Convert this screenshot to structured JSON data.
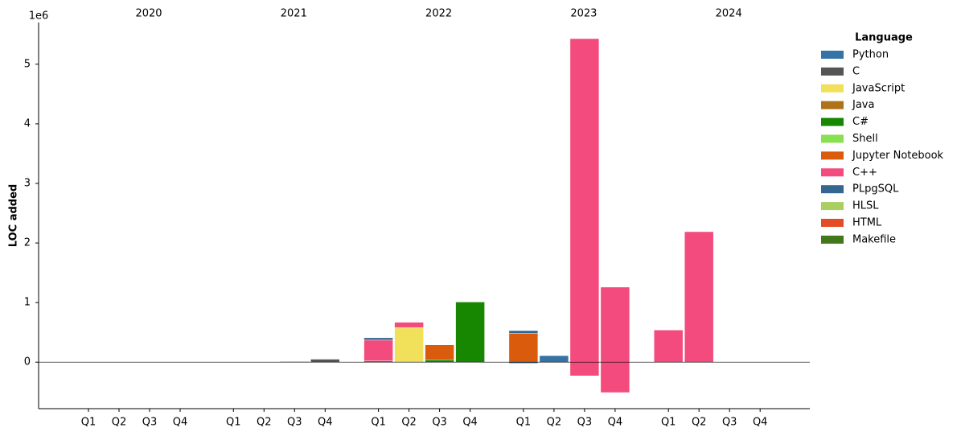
{
  "chart_data": {
    "type": "stacked_bar",
    "ylabel": "LOC added",
    "scale_label": "1e6",
    "legend_title": "Language",
    "legend": "upper right outside",
    "years": [
      "2020",
      "2021",
      "2022",
      "2023",
      "2024"
    ],
    "categories": [
      "Q1",
      "Q2",
      "Q3",
      "Q4",
      "Q1",
      "Q2",
      "Q3",
      "Q4",
      "Q1",
      "Q2",
      "Q3",
      "Q4",
      "Q1",
      "Q2",
      "Q3",
      "Q4",
      "Q1",
      "Q2",
      "Q3",
      "Q4"
    ],
    "ylim": [
      -780000,
      5700000
    ],
    "yticks": [
      {
        "value": 0,
        "label": "0"
      },
      {
        "value": 1000000,
        "label": "1"
      },
      {
        "value": 2000000,
        "label": "2"
      },
      {
        "value": 3000000,
        "label": "3"
      },
      {
        "value": 4000000,
        "label": "4"
      },
      {
        "value": 5000000,
        "label": "5"
      }
    ],
    "series": [
      {
        "name": "Python",
        "color": "#3572a5",
        "values": [
          0,
          0,
          0,
          0,
          0,
          0,
          0,
          0,
          20000,
          0,
          0,
          0,
          0,
          110000,
          0,
          0,
          0,
          0,
          0,
          0
        ],
        "negative_values": [
          0,
          0,
          0,
          0,
          0,
          0,
          0,
          0,
          0,
          0,
          0,
          0,
          -20000,
          0,
          0,
          0,
          0,
          0,
          0,
          0
        ]
      },
      {
        "name": "C",
        "color": "#555555",
        "values": [
          0,
          0,
          0,
          0,
          0,
          0,
          10000,
          50000,
          0,
          0,
          0,
          0,
          0,
          0,
          0,
          0,
          0,
          0,
          0,
          0
        ]
      },
      {
        "name": "JavaScript",
        "color": "#f1e05a",
        "values": [
          0,
          0,
          0,
          0,
          0,
          0,
          0,
          0,
          0,
          580000,
          0,
          0,
          0,
          0,
          0,
          0,
          0,
          0,
          0,
          0
        ]
      },
      {
        "name": "Java",
        "color": "#b07219",
        "values": [
          0,
          0,
          0,
          0,
          0,
          0,
          0,
          0,
          0,
          0,
          0,
          0,
          0,
          0,
          0,
          0,
          0,
          0,
          0,
          0
        ]
      },
      {
        "name": "C#",
        "color": "#178600",
        "values": [
          0,
          0,
          0,
          0,
          0,
          0,
          0,
          0,
          0,
          0,
          40000,
          1010000,
          0,
          0,
          0,
          0,
          0,
          0,
          0,
          0
        ]
      },
      {
        "name": "Shell",
        "color": "#89e051",
        "values": [
          0,
          0,
          0,
          0,
          0,
          0,
          0,
          0,
          0,
          0,
          0,
          0,
          0,
          0,
          0,
          0,
          0,
          0,
          0,
          0
        ]
      },
      {
        "name": "Jupyter Notebook",
        "color": "#da5b0b",
        "values": [
          0,
          0,
          0,
          0,
          0,
          0,
          0,
          0,
          0,
          0,
          250000,
          0,
          480000,
          0,
          0,
          0,
          0,
          0,
          0,
          0
        ]
      },
      {
        "name": "C++",
        "color": "#f34b7d",
        "values": [
          0,
          0,
          0,
          0,
          0,
          0,
          0,
          0,
          350000,
          90000,
          0,
          0,
          0,
          0,
          5430000,
          1260000,
          540000,
          2190000,
          0,
          0
        ],
        "negative_values": [
          0,
          0,
          0,
          0,
          0,
          0,
          0,
          0,
          0,
          0,
          0,
          0,
          0,
          0,
          -230000,
          -510000,
          0,
          0,
          0,
          0
        ]
      },
      {
        "name": "PLpgSQL",
        "color": "#336790",
        "values": [
          0,
          0,
          0,
          0,
          0,
          0,
          0,
          0,
          40000,
          0,
          0,
          0,
          50000,
          0,
          0,
          0,
          0,
          0,
          0,
          0
        ]
      },
      {
        "name": "HLSL",
        "color": "#aace60",
        "values": [
          0,
          0,
          0,
          0,
          0,
          0,
          0,
          0,
          0,
          0,
          0,
          0,
          0,
          0,
          0,
          0,
          0,
          0,
          0,
          0
        ]
      },
      {
        "name": "HTML",
        "color": "#e34c26",
        "values": [
          0,
          0,
          0,
          0,
          0,
          0,
          0,
          0,
          0,
          0,
          0,
          0,
          0,
          0,
          0,
          0,
          0,
          0,
          0,
          0
        ]
      },
      {
        "name": "Makefile",
        "color": "#427819",
        "values": [
          0,
          0,
          0,
          0,
          0,
          0,
          0,
          0,
          0,
          0,
          0,
          0,
          0,
          0,
          0,
          0,
          0,
          0,
          0,
          0
        ]
      }
    ]
  }
}
